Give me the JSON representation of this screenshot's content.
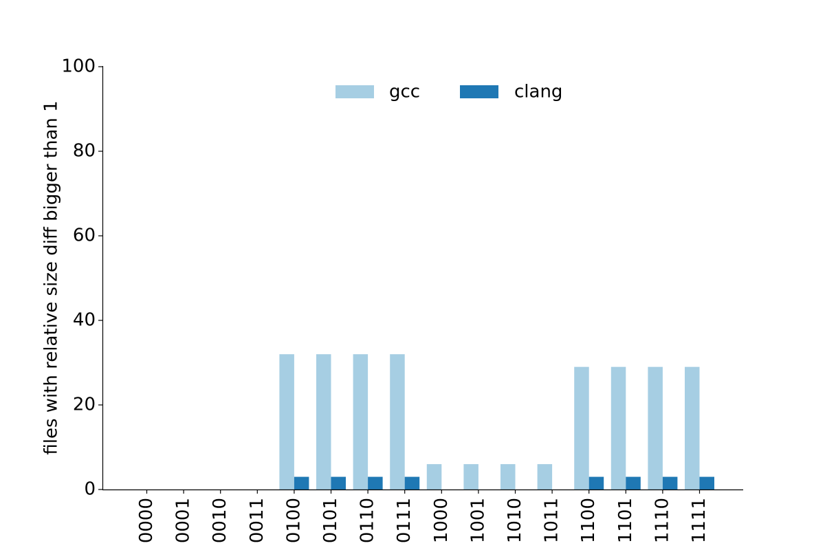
{
  "chart_data": {
    "type": "bar",
    "title": "",
    "xlabel": "",
    "ylabel": "files with relative size diff bigger than 1",
    "ylim": [
      0,
      100
    ],
    "yticks": [
      0,
      20,
      40,
      60,
      80,
      100
    ],
    "categories": [
      "0000",
      "0001",
      "0010",
      "0011",
      "0100",
      "0101",
      "0110",
      "0111",
      "1000",
      "1001",
      "1010",
      "1011",
      "1100",
      "1101",
      "1110",
      "1111"
    ],
    "series": [
      {
        "name": "gcc",
        "color": "#a6cee3",
        "values": [
          0,
          0,
          0,
          0,
          32,
          32,
          32,
          32,
          6,
          6,
          6,
          6,
          29,
          29,
          29,
          29
        ]
      },
      {
        "name": "clang",
        "color": "#1f78b4",
        "values": [
          0,
          0,
          0,
          0,
          3,
          3,
          3,
          3,
          0,
          0,
          0,
          0,
          3,
          3,
          3,
          3
        ]
      }
    ],
    "legend_position": "top-center",
    "grid": false
  }
}
